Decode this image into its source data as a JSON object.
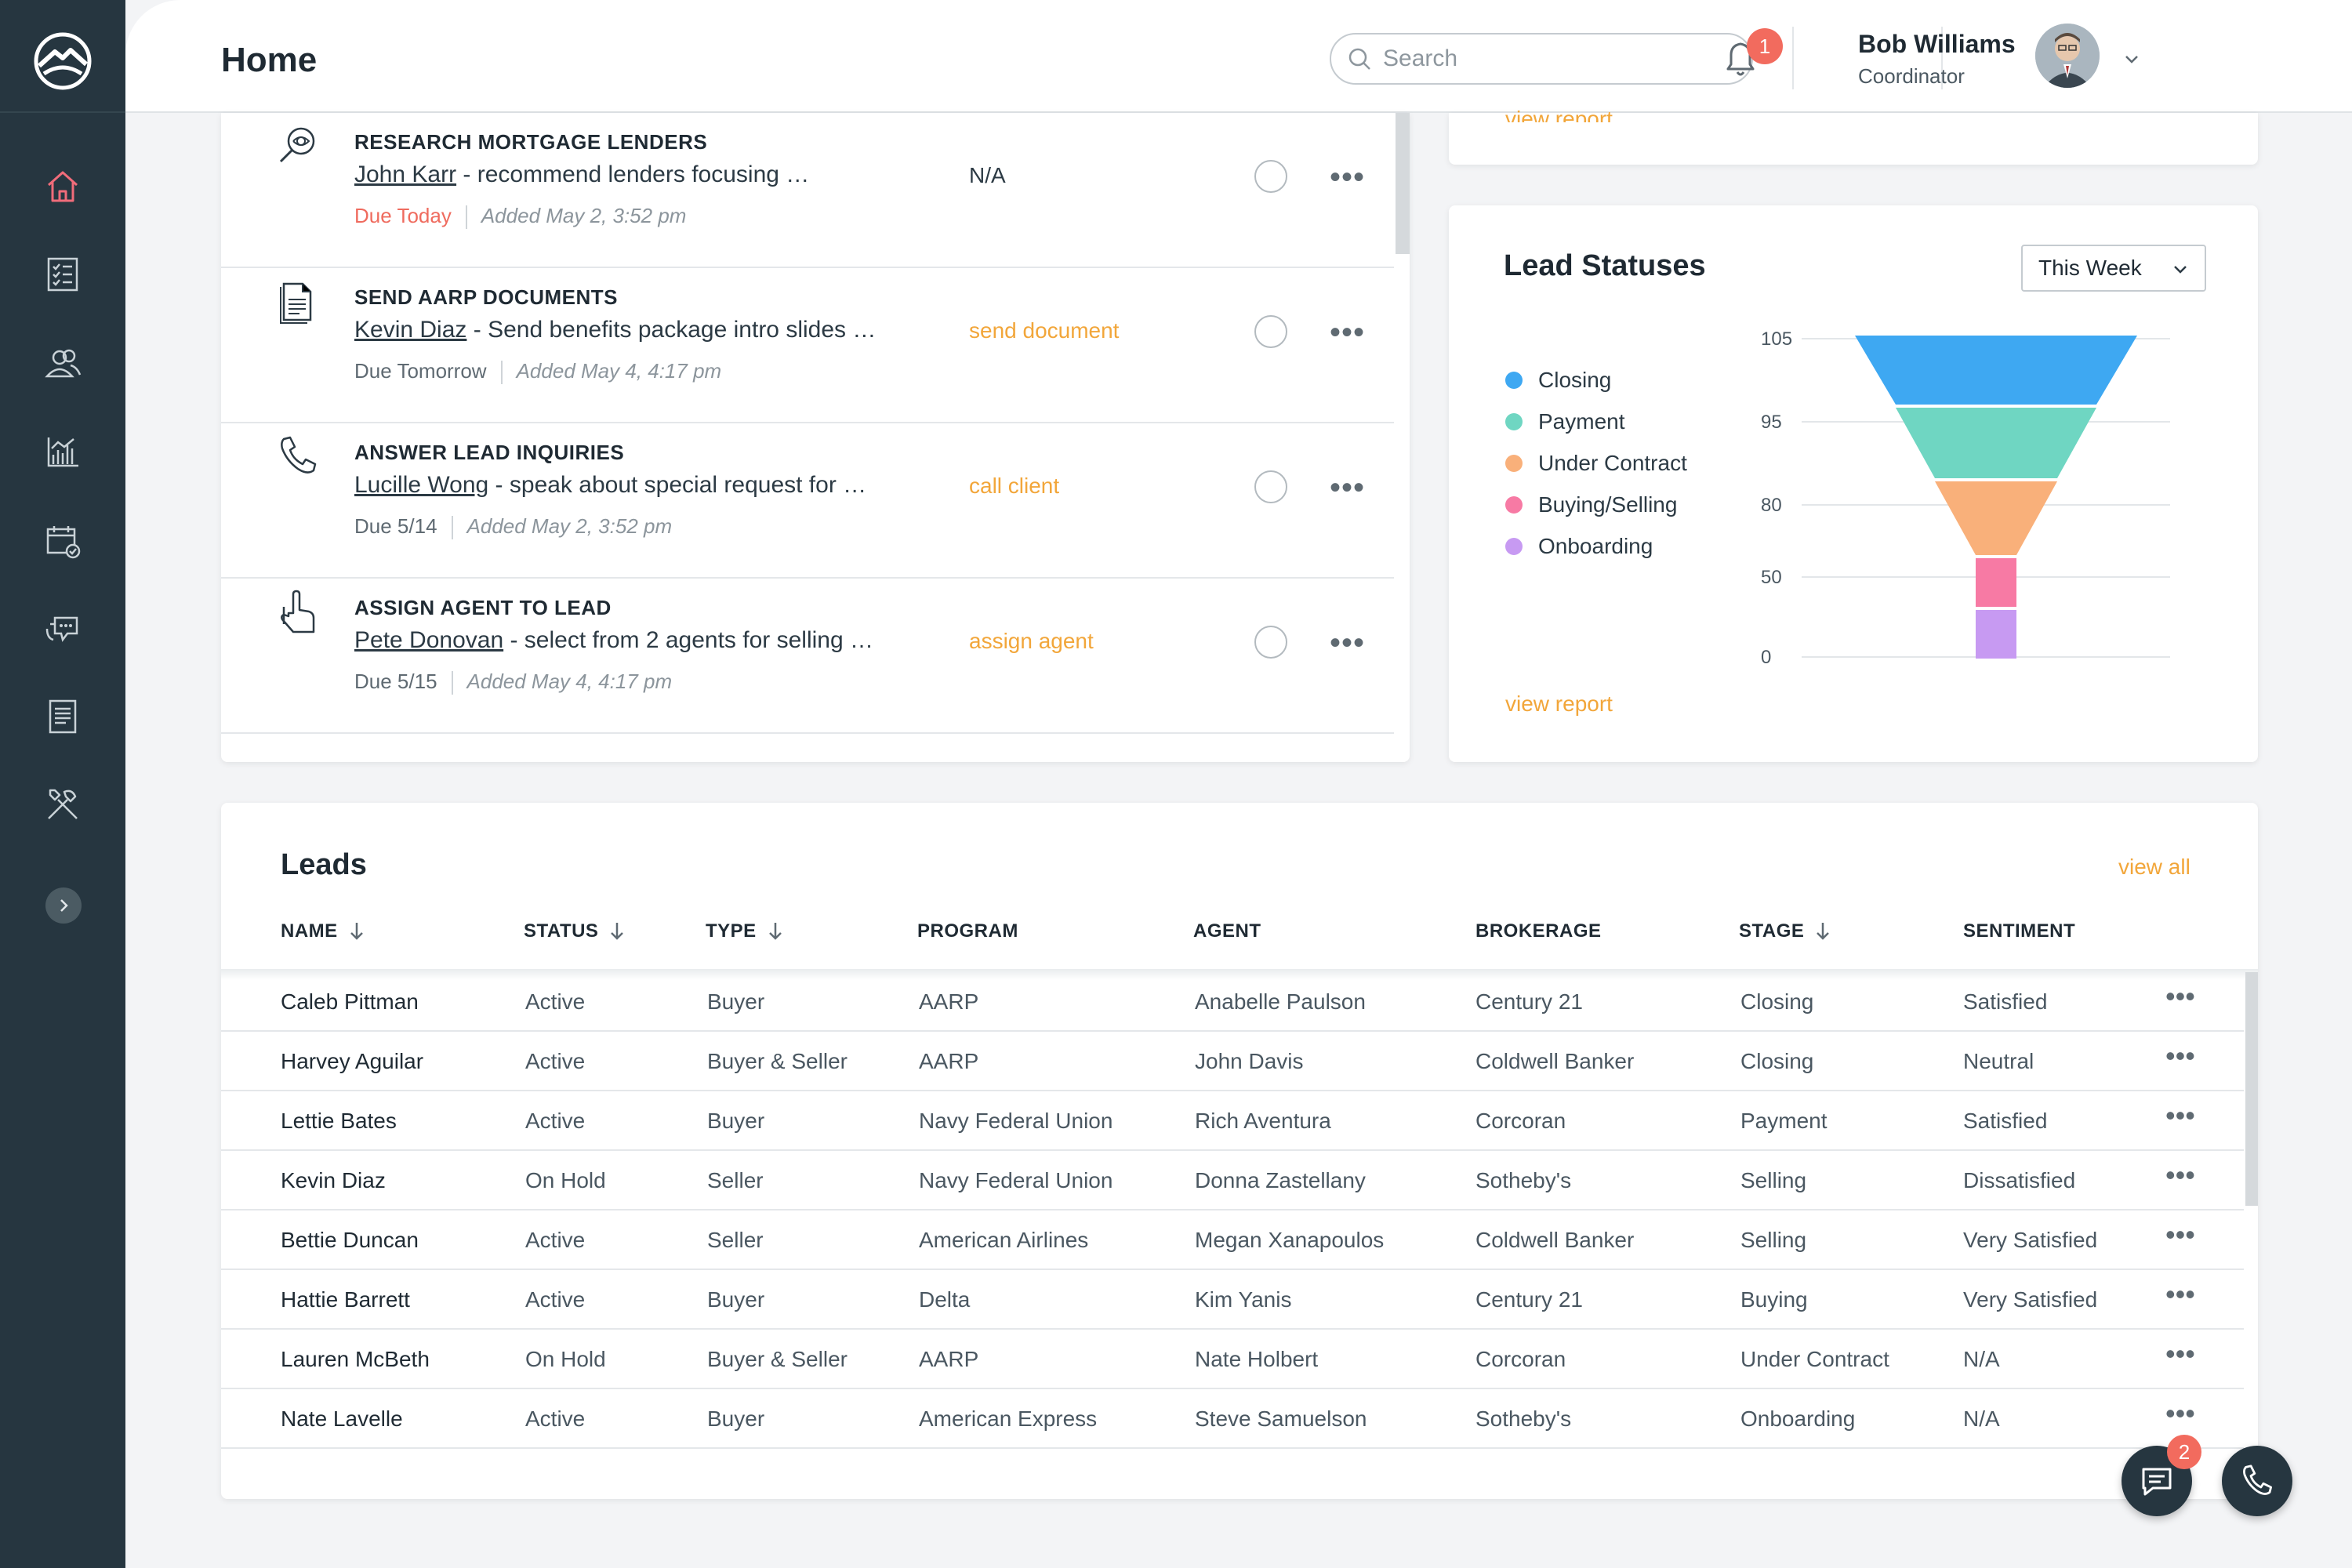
{
  "header": {
    "title": "Home",
    "search_placeholder": "Search",
    "notification_count": "1",
    "user": {
      "name": "Bob Williams",
      "role": "Coordinator"
    }
  },
  "tasks": [
    {
      "title": "RESEARCH MORTGAGE LENDERS",
      "who": "John Karr",
      "desc": " - recommend lenders focusing …",
      "due": "Due Today",
      "due_today": true,
      "added": "Added May 2, 3:52 pm",
      "action": "N/A",
      "icon": "magnifier-icon"
    },
    {
      "title": "SEND AARP DOCUMENTS",
      "who": "Kevin Diaz",
      "desc": " - Send benefits package intro slides …",
      "due": "Due Tomorrow",
      "due_today": false,
      "added": "Added May 4, 4:17 pm",
      "action": "send document",
      "icon": "document-icon"
    },
    {
      "title": "ANSWER LEAD INQUIRIES",
      "who": "Lucille Wong",
      "desc": " - speak about special request for …",
      "due": "Due 5/14",
      "due_today": false,
      "added": "Added May 2, 3:52 pm",
      "action": "call client",
      "icon": "phone-icon"
    },
    {
      "title": "ASSIGN AGENT TO LEAD",
      "who": "Pete Donovan",
      "desc": " - select from 2 agents for selling …",
      "due": "Due 5/15",
      "due_today": false,
      "added": "Added May 4, 4:17 pm",
      "action": "assign agent",
      "icon": "pointing-hand-icon"
    }
  ],
  "top_right_card": {
    "link": "view report"
  },
  "lead_statuses": {
    "title": "Lead Statuses",
    "period": "This Week",
    "view_report": "view report",
    "legend": [
      {
        "label": "Closing",
        "color": "#3ea8f2"
      },
      {
        "label": "Payment",
        "color": "#6fd6c2"
      },
      {
        "label": "Under Contract",
        "color": "#f9b07a"
      },
      {
        "label": "Buying/Selling",
        "color": "#f77aa4"
      },
      {
        "label": "Onboarding",
        "color": "#c79af2"
      }
    ]
  },
  "chart_data": {
    "type": "funnel",
    "y_ticks": [
      "105",
      "95",
      "80",
      "50",
      "0"
    ],
    "stages": [
      {
        "name": "Closing",
        "value": 105,
        "color": "#3ea8f2"
      },
      {
        "name": "Payment",
        "value": 95,
        "color": "#6fd6c2"
      },
      {
        "name": "Under Contract",
        "value": 80,
        "color": "#f9b07a"
      },
      {
        "name": "Buying/Selling",
        "value": 50,
        "color": "#f77aa4"
      },
      {
        "name": "Onboarding",
        "value": 0,
        "color": "#c79af2"
      }
    ]
  },
  "leads": {
    "title": "Leads",
    "view_all": "view all",
    "columns": [
      "NAME",
      "STATUS",
      "TYPE",
      "PROGRAM",
      "AGENT",
      "BROKERAGE",
      "STAGE",
      "SENTIMENT"
    ],
    "rows": [
      [
        "Caleb Pittman",
        "Active",
        "Buyer",
        "AARP",
        "Anabelle Paulson",
        "Century 21",
        "Closing",
        "Satisfied"
      ],
      [
        "Harvey Aguilar",
        "Active",
        "Buyer & Seller",
        "AARP",
        "John Davis",
        "Coldwell Banker",
        "Closing",
        "Neutral"
      ],
      [
        "Lettie Bates",
        "Active",
        "Buyer",
        "Navy Federal Union",
        "Rich Aventura",
        "Corcoran",
        "Payment",
        "Satisfied"
      ],
      [
        "Kevin Diaz",
        "On Hold",
        "Seller",
        "Navy Federal Union",
        "Donna Zastellany",
        "Sotheby's",
        "Selling",
        "Dissatisfied"
      ],
      [
        "Bettie Duncan",
        "Active",
        "Seller",
        "American Airlines",
        "Megan Xanapoulos",
        "Coldwell Banker",
        "Selling",
        "Very Satisfied"
      ],
      [
        "Hattie Barrett",
        "Active",
        "Buyer",
        "Delta",
        "Kim Yanis",
        "Century 21",
        "Buying",
        "Very Satisfied"
      ],
      [
        "Lauren McBeth",
        "On Hold",
        "Buyer & Seller",
        "AARP",
        "Nate Holbert",
        "Corcoran",
        "Under Contract",
        "N/A"
      ],
      [
        "Nate Lavelle",
        "Active",
        "Buyer",
        "American Express",
        "Steve Samuelson",
        "Sotheby's",
        "Onboarding",
        "N/A"
      ]
    ]
  },
  "chat_badge": "2",
  "colors": {
    "sidebar": "#263640",
    "accent": "#f2a63a",
    "alert": "#f26b5e",
    "home_active": "#f06c7a"
  }
}
